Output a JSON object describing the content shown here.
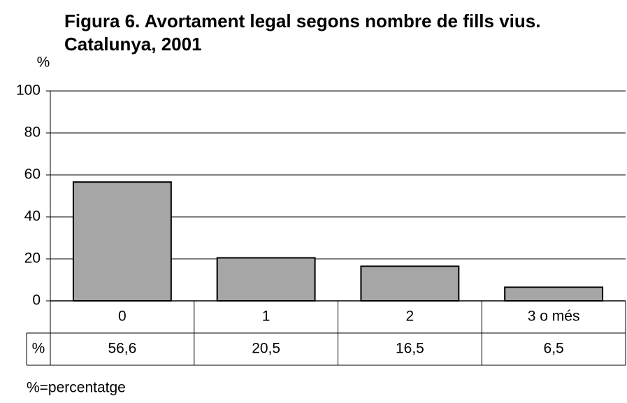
{
  "chart_data": {
    "type": "bar",
    "title": "Figura 6. Avortament legal segons nombre de fills vius. Catalunya, 2001",
    "y_label": "%",
    "categories": [
      "0",
      "1",
      "2",
      "3 o més"
    ],
    "series": [
      {
        "name": "%",
        "color": "#a6a6a6",
        "values": [
          56.6,
          20.5,
          16.5,
          6.5
        ],
        "value_labels": [
          "56,6",
          "20,5",
          "16,5",
          "6,5"
        ]
      }
    ],
    "ylim": [
      0,
      100
    ],
    "yticks": [
      0,
      20,
      40,
      60,
      80,
      100
    ],
    "grid": true,
    "note": "%=percentatge"
  }
}
